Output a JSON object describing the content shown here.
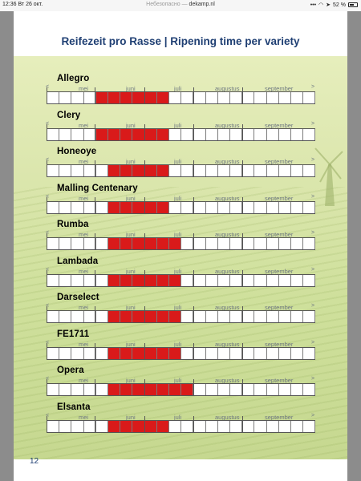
{
  "status_bar": {
    "time": "12:36",
    "date": "Вт 26 окт.",
    "security": "Небезопасно —",
    "domain": "dekamp.nl",
    "battery": "52 %"
  },
  "title": "Reifezeit pro Rasse | Ripening time per variety",
  "months": [
    "mei",
    "juni",
    "juli",
    "augustus",
    "september"
  ],
  "arrows": {
    "left": "<",
    "right": ">"
  },
  "page_number": "12",
  "colors": {
    "title": "#1f3f73",
    "ripe": "#d91a1a",
    "field": "#dbe6ad"
  },
  "varieties": [
    {
      "name": "Allegro",
      "ripe_start": 4,
      "ripe_end": 9
    },
    {
      "name": "Clery",
      "ripe_start": 4,
      "ripe_end": 9
    },
    {
      "name": "Honeoye",
      "ripe_start": 5,
      "ripe_end": 9
    },
    {
      "name": "Malling Centenary",
      "ripe_start": 5,
      "ripe_end": 9
    },
    {
      "name": "Rumba",
      "ripe_start": 5,
      "ripe_end": 10
    },
    {
      "name": "Lambada",
      "ripe_start": 5,
      "ripe_end": 10
    },
    {
      "name": "Darselect",
      "ripe_start": 5,
      "ripe_end": 10
    },
    {
      "name": "FE1711",
      "ripe_start": 5,
      "ripe_end": 10
    },
    {
      "name": "Opera",
      "ripe_start": 5,
      "ripe_end": 11
    },
    {
      "name": "Elsanta",
      "ripe_start": 5,
      "ripe_end": 9
    }
  ]
}
